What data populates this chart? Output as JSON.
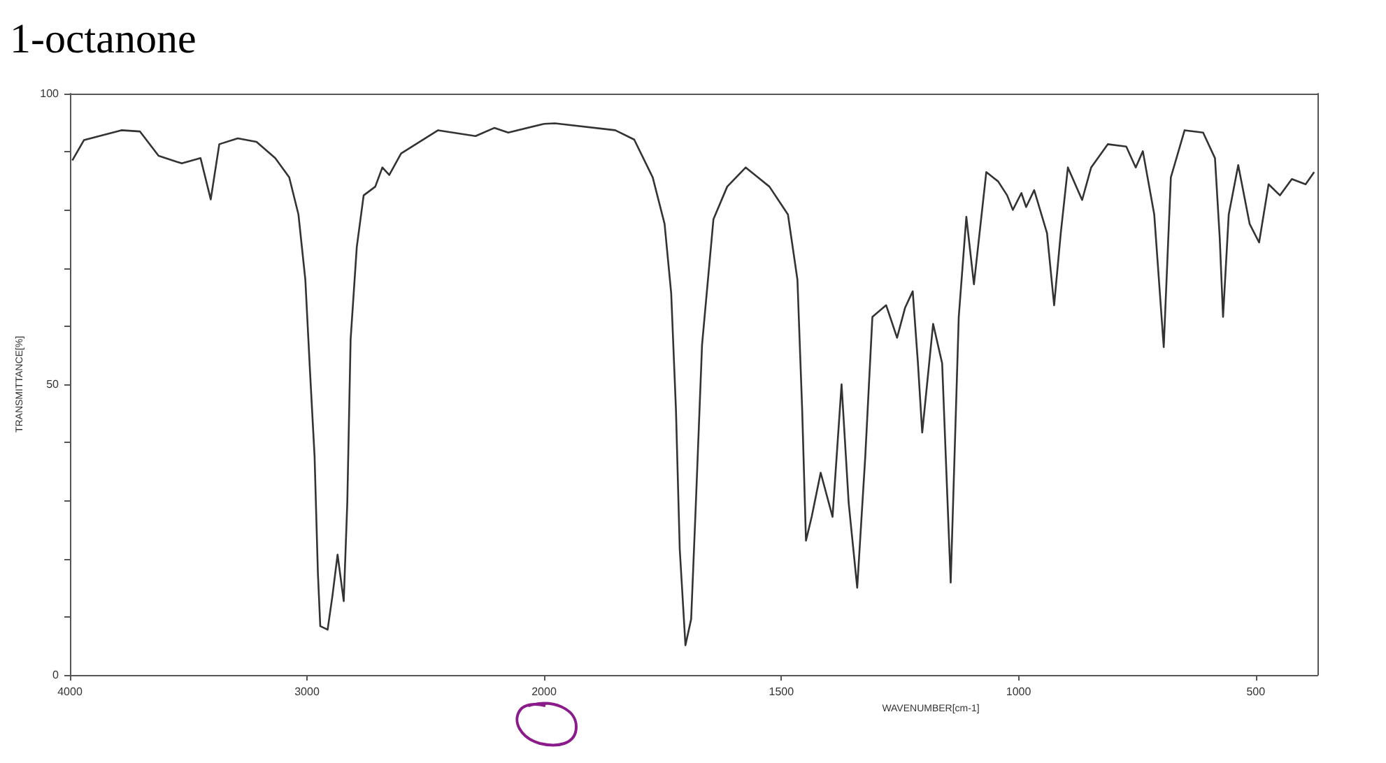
{
  "chart_data": [
    {
      "type": "line",
      "title": "1-octanone",
      "ylabel": "TRANSMITTANCE[%]",
      "x": [
        3990,
        3941,
        3783,
        3705,
        3626,
        3528,
        3449,
        3406,
        3370,
        3292,
        3213,
        3134,
        3075,
        3036,
        3007,
        2987,
        2968,
        2954,
        2944,
        2913,
        2893,
        2871,
        2845,
        2830,
        2816,
        2790,
        2761,
        2712,
        2682,
        2653,
        2603,
        2447,
        2289,
        2210,
        2151,
        2000
      ],
      "series": [
        {
          "color": "#333333",
          "values": [
            88.5,
            92,
            93.7,
            93.5,
            89.3,
            88,
            88.9,
            81.8,
            91.3,
            92.3,
            91.7,
            88.9,
            85.6,
            79.2,
            68,
            52,
            37.6,
            17.5,
            8.4,
            7.8,
            13.5,
            20.7,
            12.7,
            29.6,
            57.7,
            73.6,
            82.5,
            84,
            87.3,
            86,
            89.7,
            93.7,
            92.7,
            94.1,
            93.3,
            94.8
          ]
        }
      ],
      "xlim": [
        4000,
        2000
      ],
      "xticks": [
        4000,
        3000,
        2000
      ],
      "ylim": [
        0,
        100
      ],
      "yticks": [
        0,
        {
          "value": 10,
          "label": null
        },
        {
          "value": 20,
          "label": null
        },
        {
          "value": 30,
          "label": null
        },
        {
          "value": 40,
          "label": null
        },
        50,
        {
          "value": 60,
          "label": null
        },
        {
          "value": 70,
          "label": null
        },
        {
          "value": 80,
          "label": null
        },
        {
          "value": 90,
          "label": null
        },
        100
      ],
      "grid": false,
      "marker": "none",
      "line_style": "solid"
    },
    {
      "type": "line",
      "xlabel": "WAVENUMBER[cm-1]",
      "x": [
        2000,
        1977,
        1850,
        1810,
        1771,
        1746,
        1732,
        1722,
        1714,
        1702,
        1690,
        1680,
        1667,
        1643,
        1614,
        1575,
        1525,
        1486,
        1466,
        1456,
        1448,
        1436,
        1417,
        1392,
        1373,
        1358,
        1340,
        1323,
        1308,
        1279,
        1256,
        1239,
        1223,
        1212,
        1203,
        1180,
        1161,
        1143,
        1126,
        1110,
        1094,
        1068,
        1043,
        1024,
        1012,
        994,
        984,
        967,
        940,
        925,
        911,
        896,
        866,
        847,
        812,
        773,
        753,
        738,
        714,
        694,
        679,
        650,
        611,
        586,
        576,
        569,
        557,
        537,
        513,
        493,
        473,
        449,
        424,
        395,
        377
      ],
      "series": [
        {
          "color": "#333333",
          "values": [
            94.8,
            94.9,
            93.7,
            92.1,
            85.6,
            77.6,
            65.6,
            45.6,
            21.6,
            5.1,
            9.6,
            29.6,
            56.8,
            78.4,
            84,
            87.3,
            84,
            79.2,
            68,
            45.6,
            23.1,
            27.2,
            34.8,
            27.2,
            50,
            29.6,
            15,
            37.6,
            61.6,
            63.6,
            58,
            63.2,
            66,
            53.6,
            41.7,
            60.4,
            53.6,
            15.9,
            61.6,
            78.8,
            67.2,
            86.5,
            84.9,
            82.5,
            80,
            82.9,
            80.5,
            83.4,
            76,
            63.6,
            76,
            87.3,
            81.7,
            87.3,
            91.3,
            90.9,
            87.3,
            90.1,
            79.2,
            56.4,
            85.6,
            93.7,
            93.3,
            88.9,
            75.2,
            61.6,
            79.2,
            87.7,
            77.6,
            74.4,
            84.4,
            82.5,
            85.3,
            84.4,
            86.5
          ]
        }
      ],
      "xlim": [
        2000,
        370
      ],
      "xticks": [
        1500,
        1000,
        500
      ],
      "ylim": [
        0,
        100
      ],
      "tick_labels": "x",
      "grid": false,
      "marker": "none",
      "line_style": "solid"
    }
  ]
}
